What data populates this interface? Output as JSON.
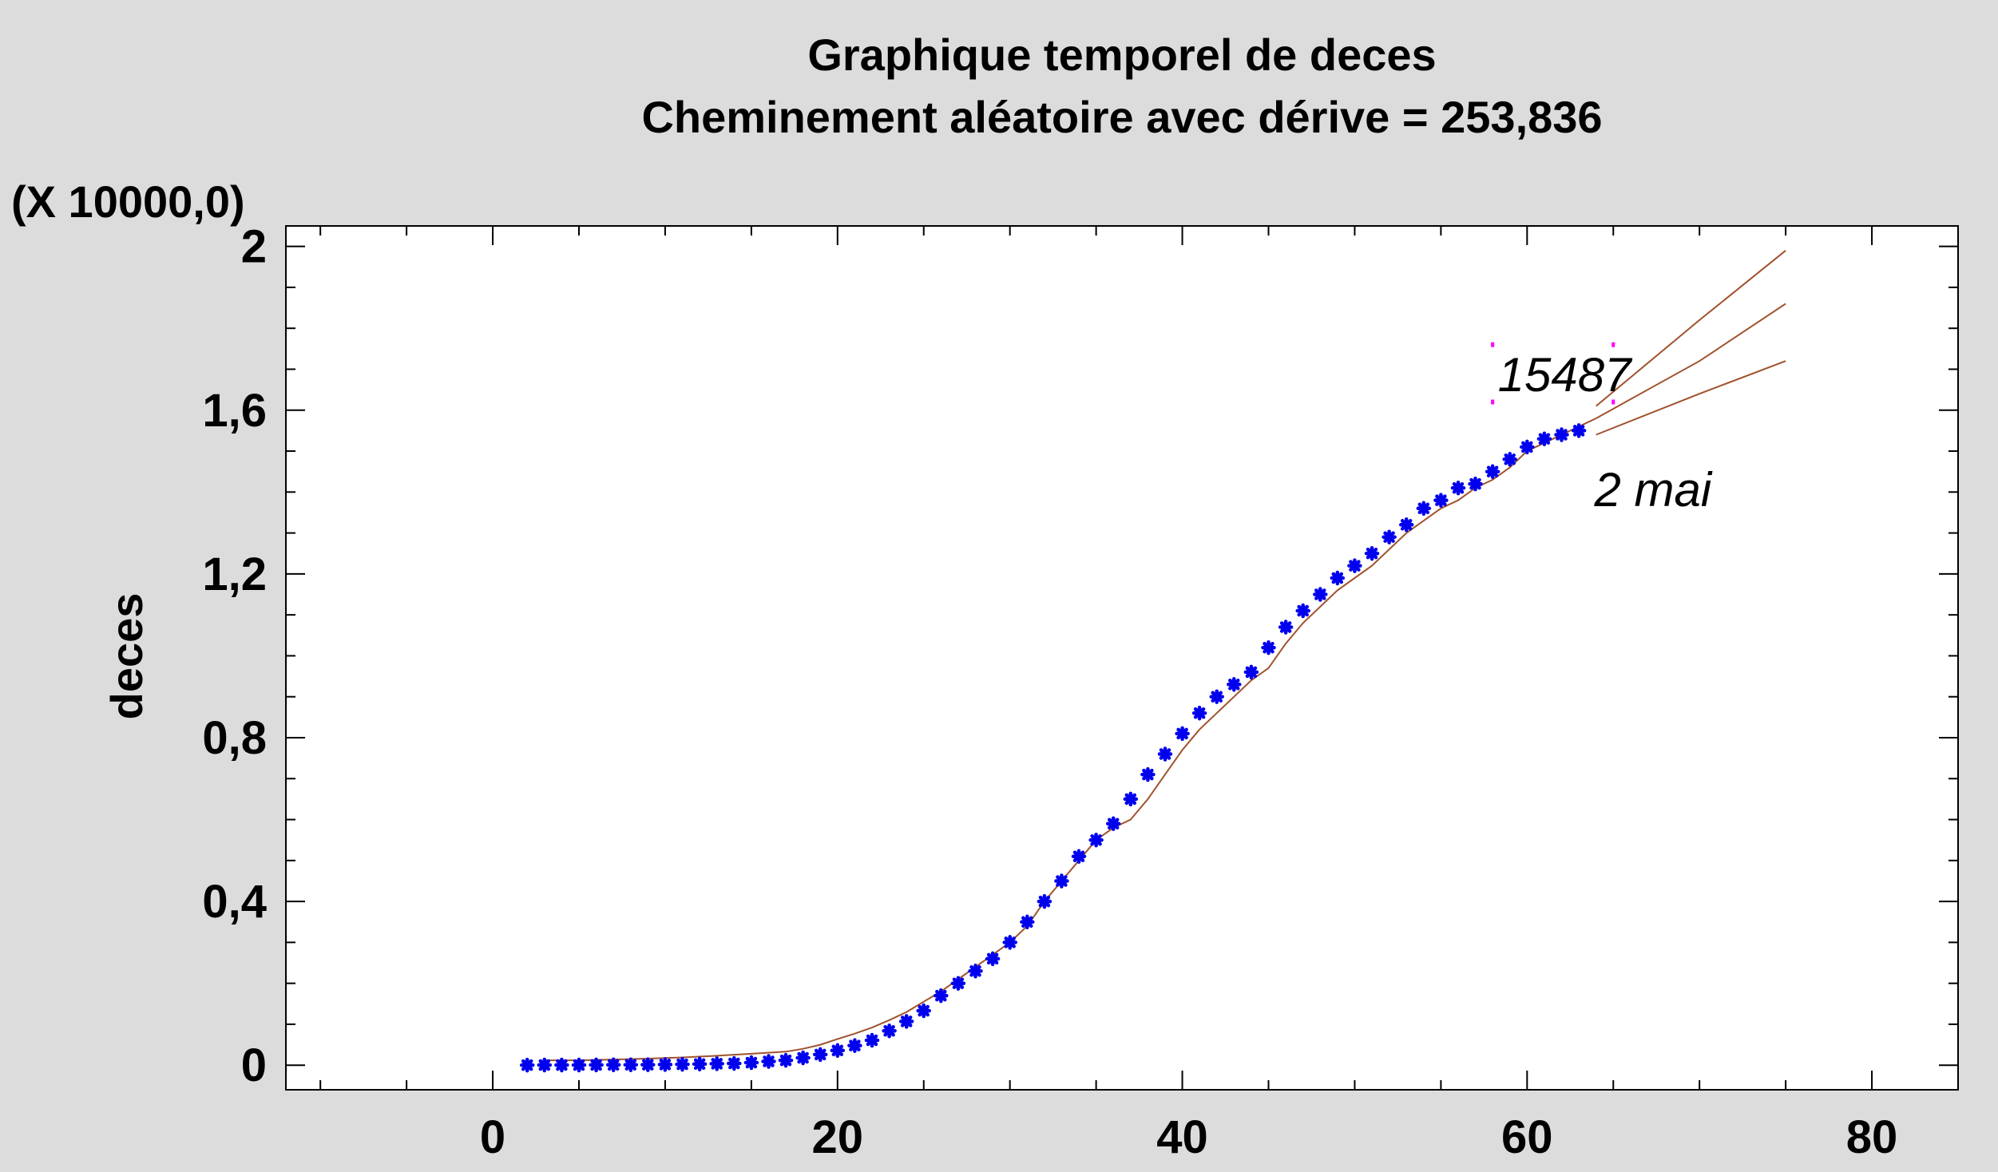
{
  "chart_data": {
    "type": "line",
    "title": "Graphique temporel de deces",
    "subtitle": "Cheminement aléatoire avec dérive = 253,836",
    "xlabel": "",
    "ylabel": "deces",
    "y_multiplier_label": "(X 10000,0)",
    "xlim": [
      -12,
      85
    ],
    "ylim": [
      -0.06,
      2.05
    ],
    "x_ticks": [
      0,
      20,
      40,
      60,
      80
    ],
    "x_tick_labels": [
      "0",
      "20",
      "40",
      "60",
      "80"
    ],
    "y_ticks": [
      0,
      0.4,
      0.8,
      1.2,
      1.6,
      2.0
    ],
    "y_tick_labels": [
      "0",
      "0,4",
      "0,8",
      "1,2",
      "1,6",
      "2"
    ],
    "grid": false,
    "series": [
      {
        "kind": "observed",
        "marker": "asterisk",
        "color": "#0000ee",
        "x": [
          2,
          3,
          4,
          5,
          6,
          7,
          8,
          9,
          10,
          11,
          12,
          13,
          14,
          15,
          16,
          17,
          18,
          19,
          20,
          21,
          22,
          23,
          24,
          25,
          26,
          27,
          28,
          29,
          30,
          31,
          32,
          33,
          34,
          35,
          36,
          37,
          38,
          39,
          40,
          41,
          42,
          43,
          44,
          45,
          46,
          47,
          48,
          49,
          50,
          51,
          52,
          53,
          54,
          55,
          56,
          57,
          58,
          59,
          60,
          61,
          62,
          63
        ],
        "y": [
          0.0003,
          0.0004,
          0.0004,
          0.0005,
          0.0006,
          0.0008,
          0.001,
          0.0013,
          0.0017,
          0.0022,
          0.0028,
          0.0035,
          0.0044,
          0.0063,
          0.0092,
          0.012,
          0.018,
          0.026,
          0.036,
          0.048,
          0.061,
          0.084,
          0.107,
          0.133,
          0.17,
          0.2,
          0.23,
          0.26,
          0.3,
          0.35,
          0.4,
          0.45,
          0.51,
          0.55,
          0.59,
          0.65,
          0.71,
          0.76,
          0.81,
          0.86,
          0.9,
          0.93,
          0.96,
          1.02,
          1.07,
          1.11,
          1.15,
          1.19,
          1.22,
          1.25,
          1.29,
          1.32,
          1.36,
          1.38,
          1.41,
          1.42,
          1.45,
          1.48,
          1.51,
          1.53,
          1.54,
          1.55
        ]
      },
      {
        "kind": "fitted",
        "line": true,
        "color": "#a0522d",
        "x": [
          3,
          5,
          7,
          9,
          11,
          13,
          15,
          17,
          18,
          19,
          20,
          21,
          22,
          23,
          24,
          25,
          26,
          27,
          28,
          29,
          30,
          31,
          32,
          33,
          34,
          35,
          36,
          37,
          38,
          39,
          40,
          41,
          42,
          43,
          44,
          45,
          46,
          47,
          48,
          49,
          50,
          51,
          52,
          53,
          54,
          55,
          56,
          57,
          58,
          59,
          60,
          61,
          62,
          63,
          64
        ],
        "y": [
          0.012,
          0.012,
          0.014,
          0.016,
          0.019,
          0.023,
          0.028,
          0.033,
          0.04,
          0.05,
          0.064,
          0.077,
          0.092,
          0.11,
          0.13,
          0.155,
          0.18,
          0.21,
          0.24,
          0.27,
          0.3,
          0.34,
          0.4,
          0.45,
          0.5,
          0.55,
          0.58,
          0.6,
          0.65,
          0.71,
          0.77,
          0.82,
          0.86,
          0.9,
          0.94,
          0.97,
          1.03,
          1.08,
          1.12,
          1.16,
          1.19,
          1.22,
          1.26,
          1.3,
          1.33,
          1.36,
          1.38,
          1.41,
          1.43,
          1.46,
          1.5,
          1.52,
          1.54,
          1.56,
          1.58
        ]
      },
      {
        "kind": "forecast-upper",
        "line": true,
        "color": "#a0522d",
        "x": [
          64,
          70,
          75
        ],
        "y": [
          1.61,
          1.82,
          1.99
        ]
      },
      {
        "kind": "forecast",
        "line": true,
        "color": "#a0522d",
        "x": [
          64,
          70,
          75
        ],
        "y": [
          1.58,
          1.72,
          1.86
        ]
      },
      {
        "kind": "forecast-lower",
        "line": true,
        "color": "#a0522d",
        "x": [
          64,
          70,
          75
        ],
        "y": [
          1.54,
          1.64,
          1.72
        ]
      }
    ],
    "annotations": [
      {
        "text": "15487",
        "x": 58.3,
        "y": 1.685,
        "marker_box_x": [
          58,
          65
        ],
        "marker_box_y": [
          1.62,
          1.76
        ],
        "marker_color": "#ff00ff"
      },
      {
        "text": "2 mai",
        "x": 63.9,
        "y": 1.405
      }
    ]
  }
}
